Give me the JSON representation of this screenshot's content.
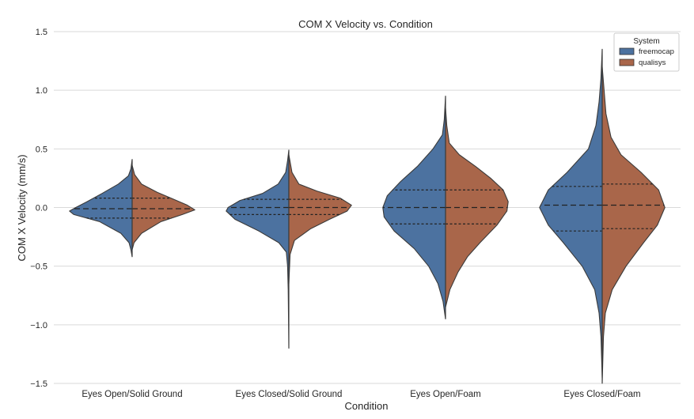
{
  "chart_data": {
    "type": "violin",
    "title": "COM X Velocity vs. Condition",
    "xlabel": "Condition",
    "ylabel": "COM X Velocity (mm/s)",
    "ylim": [
      -1.5,
      1.5
    ],
    "yticks": [
      -1.5,
      -1.0,
      -0.5,
      0.0,
      0.5,
      1.0,
      1.5
    ],
    "ytick_labels": [
      "−1.5",
      "−1.0",
      "−0.5",
      "0.0",
      "0.5",
      "1.0",
      "1.5"
    ],
    "grid": "horizontal",
    "split": true,
    "inner": "quartile",
    "categories": [
      "Eyes Open/Solid Ground",
      "Eyes Closed/Solid Ground",
      "Eyes Open/Foam",
      "Eyes Closed/Foam"
    ],
    "legend": {
      "title": "System",
      "position": "top-right",
      "entries": [
        {
          "label": "freemocap",
          "color": "#4c72a0"
        },
        {
          "label": "qualisys",
          "color": "#a9664a"
        }
      ]
    },
    "series": [
      {
        "name": "freemocap",
        "side": "left",
        "color": "#4c72a0",
        "violins": [
          {
            "min": -0.42,
            "max": 0.41,
            "q1": -0.09,
            "median": -0.01,
            "q3": 0.08,
            "profile": [
              [
                -0.42,
                0.0
              ],
              [
                -0.36,
                0.02
              ],
              [
                -0.3,
                0.05
              ],
              [
                -0.22,
                0.18
              ],
              [
                -0.12,
                0.52
              ],
              [
                -0.06,
                0.93
              ],
              [
                -0.03,
                1.0
              ],
              [
                0.0,
                0.9
              ],
              [
                0.05,
                0.72
              ],
              [
                0.12,
                0.48
              ],
              [
                0.2,
                0.22
              ],
              [
                0.27,
                0.06
              ],
              [
                0.33,
                0.02
              ],
              [
                0.41,
                0.0
              ]
            ]
          },
          {
            "min": -1.2,
            "max": 0.49,
            "q1": -0.06,
            "median": 0.0,
            "q3": 0.07,
            "profile": [
              [
                -1.2,
                0.0
              ],
              [
                -0.7,
                0.01
              ],
              [
                -0.5,
                0.02
              ],
              [
                -0.38,
                0.04
              ],
              [
                -0.3,
                0.16
              ],
              [
                -0.2,
                0.48
              ],
              [
                -0.1,
                0.86
              ],
              [
                -0.03,
                1.0
              ],
              [
                0.0,
                0.97
              ],
              [
                0.06,
                0.78
              ],
              [
                0.12,
                0.42
              ],
              [
                0.2,
                0.17
              ],
              [
                0.3,
                0.05
              ],
              [
                0.4,
                0.02
              ],
              [
                0.49,
                0.0
              ]
            ]
          },
          {
            "min": -0.95,
            "max": 0.95,
            "q1": -0.14,
            "median": 0.0,
            "q3": 0.15,
            "profile": [
              [
                -0.95,
                0.0
              ],
              [
                -0.8,
                0.04
              ],
              [
                -0.65,
                0.12
              ],
              [
                -0.5,
                0.27
              ],
              [
                -0.35,
                0.5
              ],
              [
                -0.2,
                0.82
              ],
              [
                -0.08,
                0.98
              ],
              [
                0.0,
                1.0
              ],
              [
                0.1,
                0.93
              ],
              [
                0.22,
                0.72
              ],
              [
                0.35,
                0.45
              ],
              [
                0.5,
                0.2
              ],
              [
                0.62,
                0.05
              ],
              [
                0.75,
                0.02
              ],
              [
                0.95,
                0.0
              ]
            ]
          },
          {
            "min": -1.45,
            "max": 1.35,
            "q1": -0.2,
            "median": 0.02,
            "q3": 0.18,
            "profile": [
              [
                -1.45,
                0.0
              ],
              [
                -1.1,
                0.02
              ],
              [
                -0.9,
                0.05
              ],
              [
                -0.7,
                0.12
              ],
              [
                -0.5,
                0.32
              ],
              [
                -0.3,
                0.62
              ],
              [
                -0.15,
                0.86
              ],
              [
                0.0,
                1.0
              ],
              [
                0.15,
                0.86
              ],
              [
                0.3,
                0.56
              ],
              [
                0.5,
                0.22
              ],
              [
                0.7,
                0.1
              ],
              [
                0.9,
                0.05
              ],
              [
                1.1,
                0.02
              ],
              [
                1.35,
                0.0
              ]
            ]
          }
        ]
      },
      {
        "name": "qualisys",
        "side": "right",
        "color": "#a9664a",
        "violins": [
          {
            "min": -0.36,
            "max": 0.36,
            "q1": -0.09,
            "median": -0.01,
            "q3": 0.08,
            "profile": [
              [
                -0.36,
                0.0
              ],
              [
                -0.3,
                0.03
              ],
              [
                -0.22,
                0.15
              ],
              [
                -0.12,
                0.46
              ],
              [
                -0.06,
                0.8
              ],
              [
                -0.02,
                1.0
              ],
              [
                0.02,
                0.88
              ],
              [
                0.08,
                0.62
              ],
              [
                0.13,
                0.4
              ],
              [
                0.2,
                0.15
              ],
              [
                0.28,
                0.04
              ],
              [
                0.36,
                0.0
              ]
            ]
          },
          {
            "min": -0.65,
            "max": 0.45,
            "q1": -0.06,
            "median": 0.0,
            "q3": 0.07,
            "profile": [
              [
                -0.65,
                0.0
              ],
              [
                -0.4,
                0.02
              ],
              [
                -0.28,
                0.09
              ],
              [
                -0.18,
                0.35
              ],
              [
                -0.1,
                0.65
              ],
              [
                -0.03,
                0.93
              ],
              [
                0.02,
                1.0
              ],
              [
                0.08,
                0.82
              ],
              [
                0.14,
                0.45
              ],
              [
                0.2,
                0.16
              ],
              [
                0.3,
                0.05
              ],
              [
                0.45,
                0.0
              ]
            ]
          },
          {
            "min": -0.85,
            "max": 0.85,
            "q1": -0.14,
            "median": 0.0,
            "q3": 0.15,
            "profile": [
              [
                -0.85,
                0.0
              ],
              [
                -0.7,
                0.07
              ],
              [
                -0.55,
                0.2
              ],
              [
                -0.42,
                0.35
              ],
              [
                -0.3,
                0.55
              ],
              [
                -0.15,
                0.82
              ],
              [
                -0.03,
                0.98
              ],
              [
                0.05,
                1.0
              ],
              [
                0.15,
                0.92
              ],
              [
                0.25,
                0.72
              ],
              [
                0.35,
                0.48
              ],
              [
                0.45,
                0.22
              ],
              [
                0.55,
                0.06
              ],
              [
                0.7,
                0.02
              ],
              [
                0.85,
                0.0
              ]
            ]
          },
          {
            "min": -1.5,
            "max": 1.2,
            "q1": -0.18,
            "median": 0.02,
            "q3": 0.2,
            "profile": [
              [
                -1.5,
                0.0
              ],
              [
                -1.1,
                0.02
              ],
              [
                -0.9,
                0.05
              ],
              [
                -0.7,
                0.16
              ],
              [
                -0.5,
                0.38
              ],
              [
                -0.3,
                0.66
              ],
              [
                -0.15,
                0.88
              ],
              [
                0.0,
                1.0
              ],
              [
                0.15,
                0.9
              ],
              [
                0.3,
                0.62
              ],
              [
                0.45,
                0.3
              ],
              [
                0.6,
                0.14
              ],
              [
                0.8,
                0.06
              ],
              [
                1.0,
                0.03
              ],
              [
                1.2,
                0.0
              ]
            ]
          }
        ]
      }
    ]
  }
}
